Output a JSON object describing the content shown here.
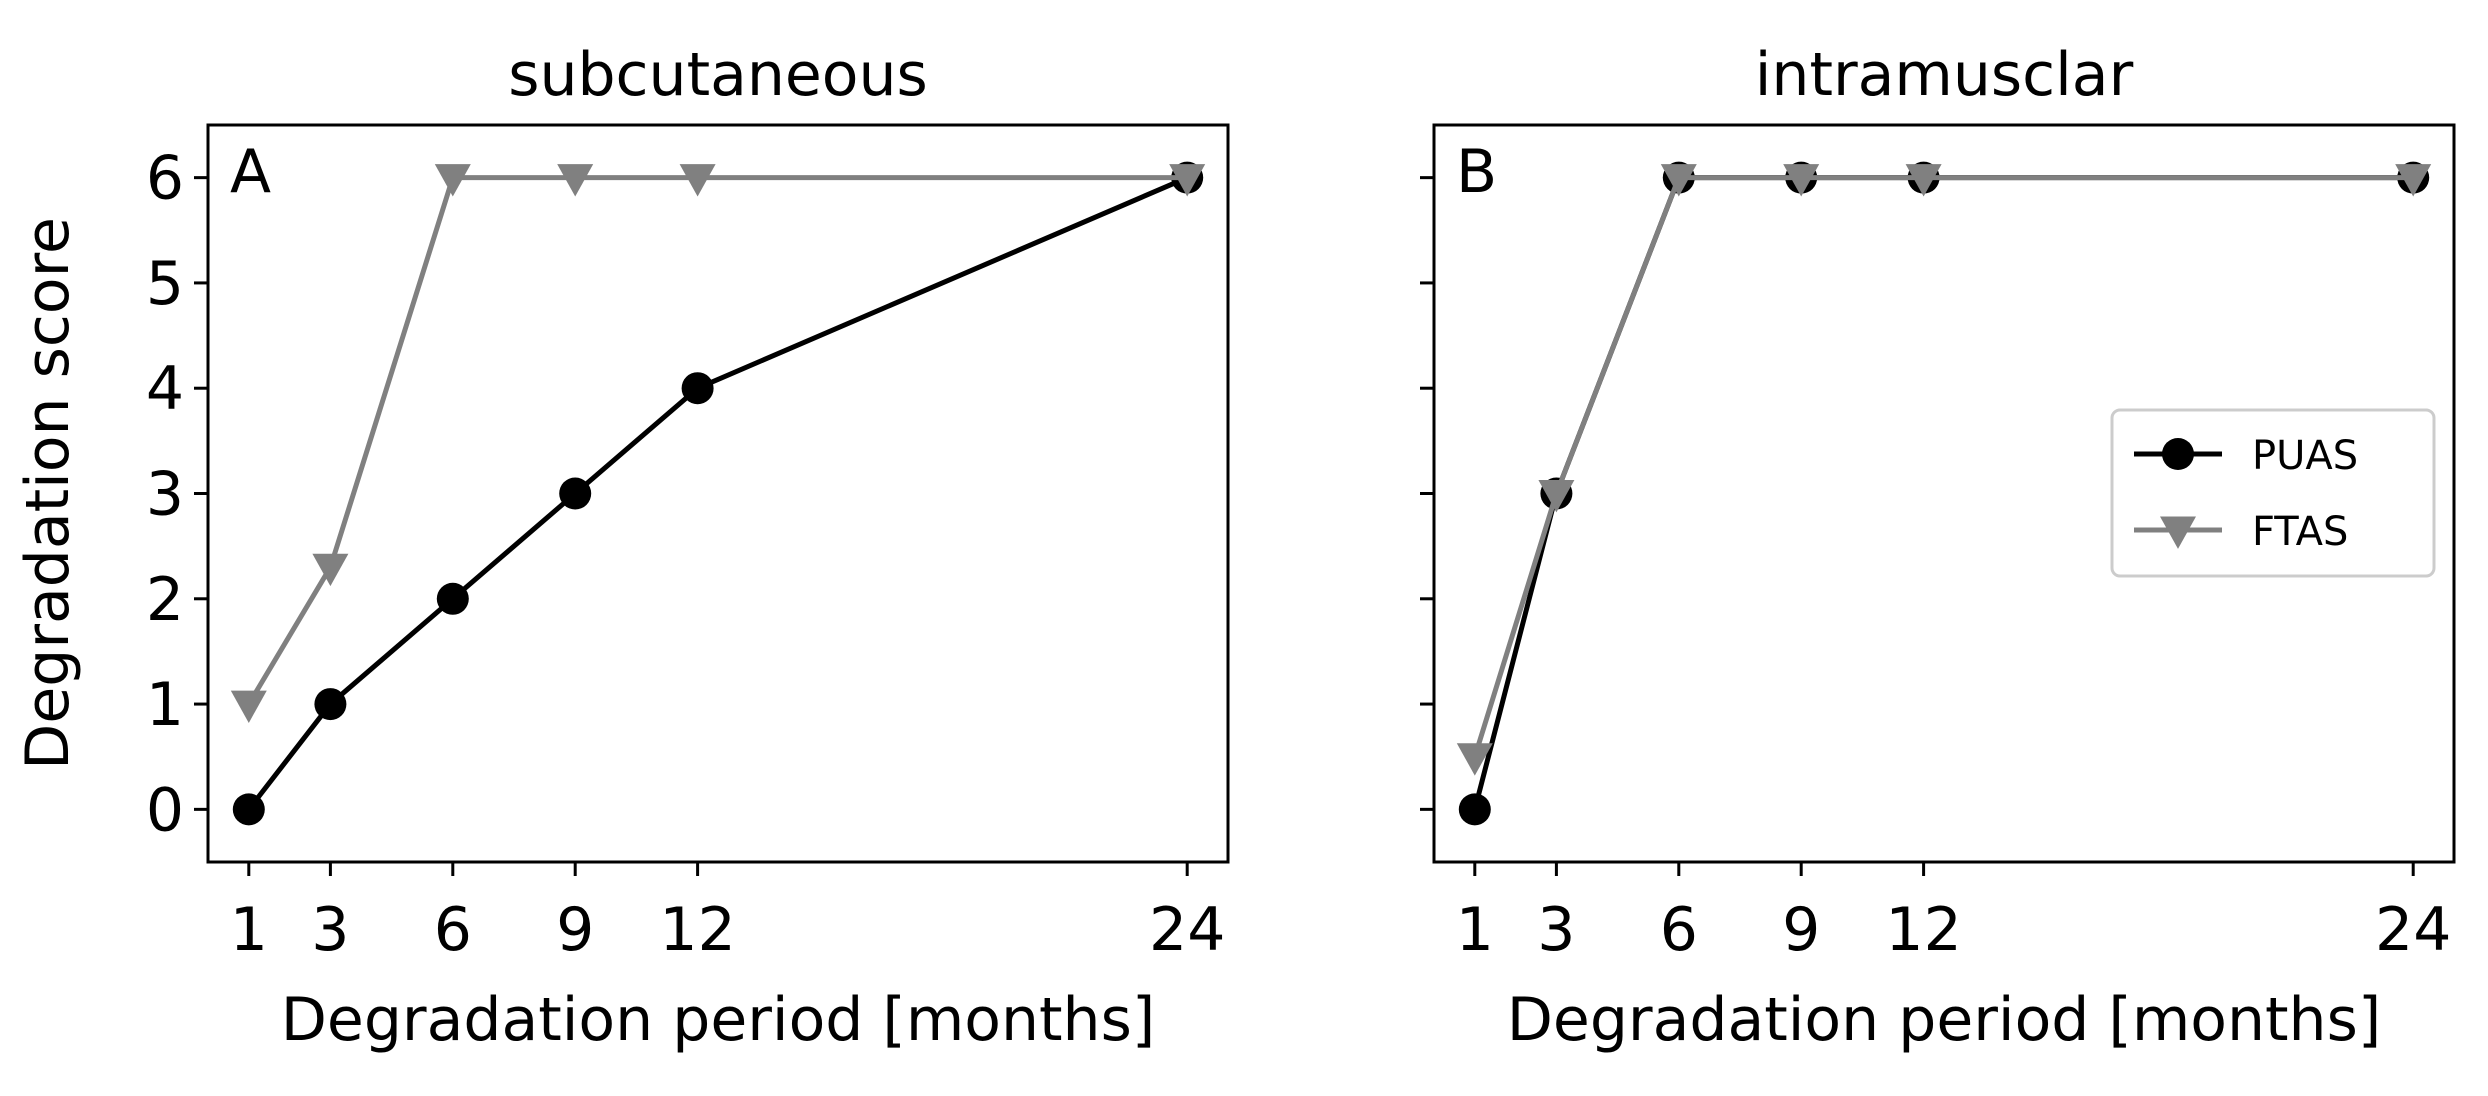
{
  "chart_data": [
    {
      "type": "line",
      "panel_label": "A",
      "title": "subcutaneous",
      "xlabel": "Degradation period [months]",
      "ylabel": "Degradation score",
      "xlim": [
        0,
        25
      ],
      "ylim": [
        -0.5,
        6.5
      ],
      "xticks": [
        1,
        3,
        6,
        9,
        12,
        24
      ],
      "yticks": [
        0,
        1,
        2,
        3,
        4,
        5,
        6
      ],
      "show_ylabel": true,
      "show_ytick_labels": true,
      "legend": null,
      "series": [
        {
          "name": "PUAS",
          "color": "#000000",
          "marker": "circle",
          "x": [
            1,
            3,
            6,
            9,
            12,
            24
          ],
          "y": [
            0,
            1,
            2,
            3,
            4,
            6
          ]
        },
        {
          "name": "FTAS",
          "color": "#808080",
          "marker": "triangle-down",
          "x": [
            1,
            3,
            6,
            9,
            12,
            24
          ],
          "y": [
            1,
            2.3,
            6,
            6,
            6,
            6
          ]
        }
      ]
    },
    {
      "type": "line",
      "panel_label": "B",
      "title": "intramusclar",
      "xlabel": "Degradation period [months]",
      "ylabel": "",
      "xlim": [
        0,
        25
      ],
      "ylim": [
        -0.5,
        6.5
      ],
      "xticks": [
        1,
        3,
        6,
        9,
        12,
        24
      ],
      "yticks": [
        0,
        1,
        2,
        3,
        4,
        5,
        6
      ],
      "show_ylabel": false,
      "show_ytick_labels": false,
      "legend": "center-right",
      "series": [
        {
          "name": "PUAS",
          "color": "#000000",
          "marker": "circle",
          "x": [
            1,
            3,
            6,
            9,
            12,
            24
          ],
          "y": [
            0,
            3,
            6,
            6,
            6,
            6
          ]
        },
        {
          "name": "FTAS",
          "color": "#808080",
          "marker": "triangle-down",
          "x": [
            1,
            3,
            6,
            9,
            12,
            24
          ],
          "y": [
            0.5,
            3,
            6,
            6,
            6,
            6
          ]
        }
      ]
    }
  ]
}
